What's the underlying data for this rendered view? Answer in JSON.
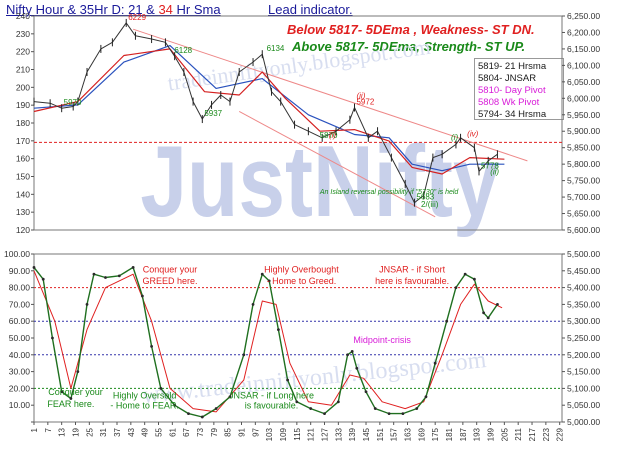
{
  "header": {
    "title_prefix": "Nifty Hour & 35Hr D: 21 & ",
    "title_num": "34",
    "title_suffix": " Hr Sma",
    "lead": "Lead indicator.",
    "below_line": "Below  5817-   5DEma ,  Weakness- ST  DN.",
    "above_line": "Above  5817-   5DEma,  Strength- ST  UP."
  },
  "watermark": {
    "main": "JustNifty",
    "url_top": "tradeinniftyonly.blogspot.com",
    "url_bottom": "www.tradeinniftyonly.blogspot.com"
  },
  "legend_box": [
    {
      "text": "5819- 21 Hrsma",
      "color": "#1a1a1a"
    },
    {
      "text": "5804- JNSAR",
      "color": "#1a1a1a"
    },
    {
      "text": "5810- Day Pivot",
      "color": "#d81bd8"
    },
    {
      "text": "5808  Wk Pivot",
      "color": "#d81bd8"
    },
    {
      "text": "5794- 34 Hrsma",
      "color": "#1a1a1a"
    }
  ],
  "colors": {
    "price": "#333333",
    "sma21": "#d42020",
    "sma34": "#2a52be",
    "green": "#1a8a1a",
    "magenta": "#d81bd8",
    "red": "#e02020"
  },
  "chart_data": {
    "type": "line",
    "upper_panel": {
      "left_axis": {
        "ylim": [
          120,
          240
        ],
        "ticks": [
          120,
          130,
          140,
          150,
          160,
          170,
          180,
          190,
          200,
          210,
          220,
          230,
          240
        ]
      },
      "right_axis": {
        "ylim": [
          5600,
          6250
        ],
        "ticks": [
          "5,600.00",
          "5,650.00",
          "5,700.00",
          "5,750.00",
          "5,800.00",
          "5,850.00",
          "5,900.00",
          "5,950.00",
          "6,000.00",
          "6,050.00",
          "6,100.00",
          "6,150.00",
          "6,200.00",
          "6,250.00"
        ]
      },
      "price_points": [
        [
          1,
          5990
        ],
        [
          8,
          5985
        ],
        [
          13,
          5970
        ],
        [
          18,
          5975
        ],
        [
          20,
          5990
        ],
        [
          24,
          6080
        ],
        [
          30,
          6150
        ],
        [
          35,
          6170
        ],
        [
          41,
          6229
        ],
        [
          45,
          6190
        ],
        [
          52,
          6180
        ],
        [
          58,
          6170
        ],
        [
          62,
          6128
        ],
        [
          66,
          6080
        ],
        [
          70,
          5990
        ],
        [
          74,
          5937
        ],
        [
          78,
          5980
        ],
        [
          82,
          6010
        ],
        [
          86,
          5990
        ],
        [
          90,
          6080
        ],
        [
          96,
          6110
        ],
        [
          100,
          6134
        ],
        [
          104,
          6020
        ],
        [
          108,
          5990
        ],
        [
          114,
          5920
        ],
        [
          120,
          5900
        ],
        [
          126,
          5880
        ],
        [
          132,
          5900
        ],
        [
          138,
          5935
        ],
        [
          140,
          5972
        ],
        [
          146,
          5880
        ],
        [
          150,
          5900
        ],
        [
          156,
          5820
        ],
        [
          162,
          5740
        ],
        [
          166,
          5683
        ],
        [
          170,
          5705
        ],
        [
          174,
          5820
        ],
        [
          178,
          5830
        ],
        [
          184,
          5860
        ],
        [
          186,
          5880
        ],
        [
          192,
          5850
        ],
        [
          194,
          5778
        ],
        [
          198,
          5810
        ],
        [
          202,
          5830
        ]
      ],
      "sma21": [
        [
          1,
          5960
        ],
        [
          20,
          5990
        ],
        [
          40,
          6130
        ],
        [
          60,
          6150
        ],
        [
          75,
          6020
        ],
        [
          90,
          6010
        ],
        [
          100,
          6080
        ],
        [
          110,
          6000
        ],
        [
          125,
          5900
        ],
        [
          140,
          5905
        ],
        [
          155,
          5870
        ],
        [
          165,
          5790
        ],
        [
          178,
          5770
        ],
        [
          190,
          5820
        ],
        [
          205,
          5815
        ]
      ],
      "sma34": [
        [
          1,
          5970
        ],
        [
          20,
          5980
        ],
        [
          40,
          6110
        ],
        [
          60,
          6160
        ],
        [
          80,
          6030
        ],
        [
          100,
          6060
        ],
        [
          120,
          5950
        ],
        [
          140,
          5890
        ],
        [
          155,
          5880
        ],
        [
          165,
          5800
        ],
        [
          178,
          5780
        ],
        [
          190,
          5800
        ],
        [
          205,
          5800
        ]
      ],
      "annotations": [
        {
          "text": "6229",
          "x": 41,
          "y": 6229,
          "color": "#e02020"
        },
        {
          "text": "6128",
          "x": 61,
          "y": 6128,
          "color": "#1a8a1a"
        },
        {
          "text": "6134",
          "x": 101,
          "y": 6134,
          "color": "#1a8a1a"
        },
        {
          "text": "5970",
          "x": 13,
          "y": 5970,
          "color": "#1a8a1a"
        },
        {
          "text": "5937",
          "x": 74,
          "y": 5937,
          "color": "#1a8a1a"
        },
        {
          "text": "5972",
          "x": 140,
          "y": 5972,
          "color": "#e02020"
        },
        {
          "text": "5870",
          "x": 124,
          "y": 5870,
          "color": "#1a8a1a"
        },
        {
          "text": "(i)",
          "x": 128,
          "y": 5870,
          "color": "#e02020"
        },
        {
          "text": "(ii)",
          "x": 140,
          "y": 5990,
          "color": "#e02020"
        },
        {
          "text": "5683",
          "x": 166,
          "y": 5683,
          "color": "#1a8a1a"
        },
        {
          "text": "2/(iii)",
          "x": 168,
          "y": 5660,
          "color": "#1a8a1a"
        },
        {
          "text": "5778",
          "x": 194,
          "y": 5778,
          "color": "#1a8a1a"
        },
        {
          "text": "(ii)",
          "x": 198,
          "y": 5760,
          "color": "#1a8a1a"
        },
        {
          "text": "(iv)",
          "x": 188,
          "y": 5875,
          "color": "#e02020"
        },
        {
          "text": "(i)",
          "x": 181,
          "y": 5865,
          "color": "#1a8a1a"
        }
      ],
      "note": "An Island reversal possibility if \"5730\" is held"
    },
    "lower_panel": {
      "ylim": [
        0,
        100
      ],
      "left_ticks": [
        "",
        "10.00",
        "20.00",
        "30.00",
        "40.00",
        "50.00",
        "60.00",
        "70.00",
        "80.00",
        "90.00",
        "100.00"
      ],
      "right_ticks": [
        "5,000.00",
        "5,050.00",
        "5,100.00",
        "5,150.00",
        "5,200.00",
        "5,250.00",
        "5,300.00",
        "5,350.00",
        "5,400.00",
        "5,450.00",
        "5,500.00"
      ],
      "osc": [
        [
          1,
          92
        ],
        [
          5,
          85
        ],
        [
          9,
          50
        ],
        [
          13,
          18
        ],
        [
          17,
          14
        ],
        [
          20,
          30
        ],
        [
          24,
          70
        ],
        [
          27,
          88
        ],
        [
          32,
          86
        ],
        [
          38,
          87
        ],
        [
          44,
          92
        ],
        [
          48,
          75
        ],
        [
          52,
          45
        ],
        [
          56,
          20
        ],
        [
          62,
          10
        ],
        [
          68,
          5
        ],
        [
          74,
          3
        ],
        [
          80,
          8
        ],
        [
          86,
          15
        ],
        [
          92,
          40
        ],
        [
          96,
          70
        ],
        [
          100,
          88
        ],
        [
          103,
          84
        ],
        [
          107,
          55
        ],
        [
          111,
          25
        ],
        [
          115,
          12
        ],
        [
          121,
          8
        ],
        [
          127,
          5
        ],
        [
          133,
          12
        ],
        [
          137,
          40
        ],
        [
          139,
          42
        ],
        [
          141,
          32
        ],
        [
          145,
          18
        ],
        [
          149,
          8
        ],
        [
          155,
          5
        ],
        [
          161,
          5
        ],
        [
          167,
          8
        ],
        [
          171,
          15
        ],
        [
          175,
          35
        ],
        [
          180,
          60
        ],
        [
          184,
          80
        ],
        [
          188,
          88
        ],
        [
          192,
          85
        ],
        [
          196,
          65
        ],
        [
          198,
          62
        ],
        [
          202,
          70
        ]
      ],
      "signal": [
        [
          1,
          90
        ],
        [
          10,
          60
        ],
        [
          17,
          20
        ],
        [
          24,
          55
        ],
        [
          32,
          80
        ],
        [
          44,
          88
        ],
        [
          52,
          60
        ],
        [
          60,
          20
        ],
        [
          70,
          8
        ],
        [
          80,
          6
        ],
        [
          92,
          25
        ],
        [
          100,
          72
        ],
        [
          106,
          70
        ],
        [
          112,
          35
        ],
        [
          120,
          12
        ],
        [
          130,
          10
        ],
        [
          138,
          28
        ],
        [
          144,
          26
        ],
        [
          152,
          12
        ],
        [
          162,
          8
        ],
        [
          170,
          12
        ],
        [
          178,
          40
        ],
        [
          186,
          70
        ],
        [
          192,
          82
        ],
        [
          198,
          72
        ],
        [
          204,
          68
        ]
      ],
      "hlines": [
        {
          "y": 80,
          "color": "#e02020"
        },
        {
          "y": 60,
          "color": "#3333aa"
        },
        {
          "y": 40,
          "color": "#3333aa"
        },
        {
          "y": 20,
          "color": "#1a8a1a"
        }
      ],
      "annotations": [
        {
          "text": "Conquer your",
          "x": 60,
          "y": 89,
          "color": "#e02020"
        },
        {
          "text": "GREED here.",
          "x": 60,
          "y": 82,
          "color": "#e02020"
        },
        {
          "text": "Highly Overbought",
          "x": 117,
          "y": 89,
          "color": "#e02020"
        },
        {
          "text": "- Home to Greed.",
          "x": 117,
          "y": 82,
          "color": "#e02020"
        },
        {
          "text": "JNSAR - if Short",
          "x": 165,
          "y": 89,
          "color": "#e02020"
        },
        {
          "text": "here is favourable.",
          "x": 165,
          "y": 82,
          "color": "#e02020"
        },
        {
          "text": "Midpoint-crisis",
          "x": 152,
          "y": 47,
          "color": "#d81bd8"
        },
        {
          "text": "Conquer your",
          "x": 19,
          "y": 16,
          "color": "#1a8a1a"
        },
        {
          "text": "FEAR here.",
          "x": 17,
          "y": 9,
          "color": "#1a8a1a"
        },
        {
          "text": "Highly Oversold",
          "x": 49,
          "y": 14,
          "color": "#1a8a1a"
        },
        {
          "text": "- Home to FEAR.",
          "x": 49,
          "y": 8,
          "color": "#1a8a1a"
        },
        {
          "text": "JNSAR - if Long here",
          "x": 104,
          "y": 14,
          "color": "#1a8a1a"
        },
        {
          "text": "is favourable.",
          "x": 104,
          "y": 8,
          "color": "#1a8a1a"
        }
      ]
    },
    "x_axis": {
      "xlim": [
        1,
        230
      ],
      "ticks": [
        1,
        7,
        13,
        19,
        25,
        31,
        37,
        43,
        49,
        55,
        61,
        67,
        73,
        79,
        85,
        91,
        97,
        103,
        109,
        115,
        121,
        127,
        133,
        139,
        145,
        151,
        157,
        163,
        169,
        175,
        181,
        187,
        193,
        199,
        205,
        211,
        217,
        223,
        229
      ]
    }
  }
}
